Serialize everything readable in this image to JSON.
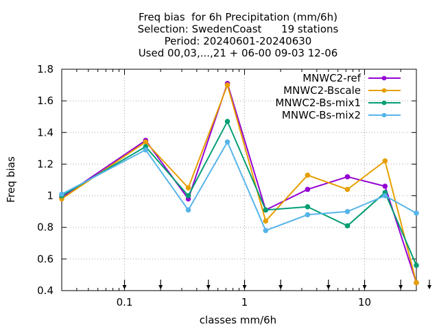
{
  "chart_data": {
    "type": "line",
    "title_lines": [
      "Freq bias  for 6h Precipitation (mm/6h)",
      "Selection: SwedenCoast      19 stations",
      "Period: 20240601-20240630",
      "Used 00,03,...,21 + 06-00 09-03 12-06"
    ],
    "xlabel": "classes mm/6h",
    "ylabel": "Freq bias",
    "x_scale": "log",
    "xlim": [
      0.03,
      27
    ],
    "ylim": [
      0.4,
      1.8
    ],
    "x_ticks": [
      0.1,
      1,
      10
    ],
    "x_tick_labels": [
      "0.1",
      "1",
      "10"
    ],
    "y_ticks": [
      0.4,
      0.6,
      0.8,
      1.0,
      1.2,
      1.4,
      1.6,
      1.8
    ],
    "y_tick_labels": [
      "0.4",
      "0.6",
      "0.8",
      "1",
      "1.2",
      "1.4",
      "1.6",
      "1.8"
    ],
    "grid": true,
    "legend_position": "top-right",
    "x": [
      0.03,
      0.15,
      0.34,
      0.72,
      1.5,
      3.35,
      7.2,
      14.8,
      27
    ],
    "arrow_markers_x": [
      0.1,
      0.2,
      0.5,
      1,
      2,
      5,
      10,
      20,
      40
    ],
    "series": [
      {
        "name": "MNWC2-ref",
        "color": "#9400d3",
        "marker": "circle",
        "values": [
          0.99,
          1.35,
          0.98,
          1.71,
          0.91,
          1.04,
          1.12,
          1.06,
          0.45
        ]
      },
      {
        "name": "MNWC2-Bscale",
        "color": "#e69f00",
        "marker": "circle",
        "values": [
          0.98,
          1.34,
          1.05,
          1.7,
          0.84,
          1.13,
          1.04,
          1.22,
          0.45
        ]
      },
      {
        "name": "MNWC2-Bs-mix1",
        "color": "#009e73",
        "marker": "circle",
        "values": [
          1.0,
          1.31,
          1.0,
          1.47,
          0.91,
          0.93,
          0.81,
          1.02,
          0.56
        ]
      },
      {
        "name": "MNWC-Bs-mix2",
        "color": "#56b4e9",
        "marker": "circle",
        "values": [
          1.01,
          1.29,
          0.91,
          1.34,
          0.78,
          0.88,
          0.9,
          1.0,
          0.89
        ]
      }
    ]
  }
}
